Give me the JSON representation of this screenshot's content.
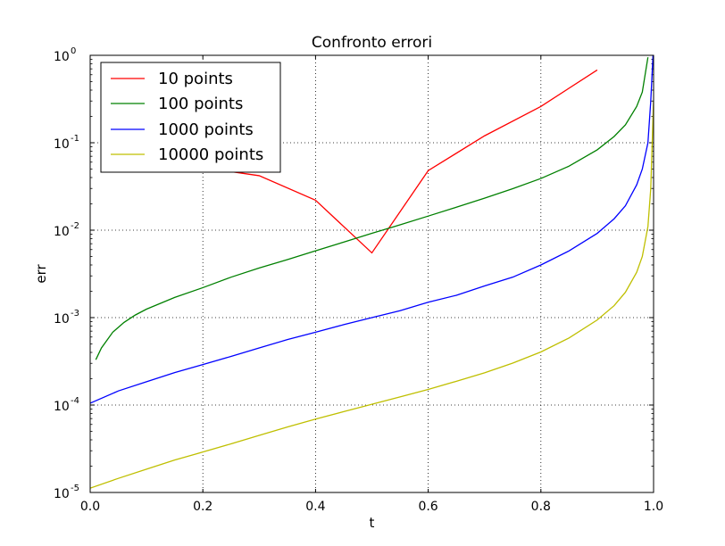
{
  "chart_data": {
    "type": "line",
    "title": "Confronto errori",
    "xlabel": "t",
    "ylabel": "err",
    "xlim": [
      0.0,
      1.0
    ],
    "ylim": [
      1e-05,
      1.0
    ],
    "yscale": "log",
    "grid": true,
    "legend_placement": "top-left",
    "x_ticks": [
      "0.0",
      "0.2",
      "0.4",
      "0.6",
      "0.8",
      "1.0"
    ],
    "y_ticks": [
      {
        "base": "10",
        "exp": "-5"
      },
      {
        "base": "10",
        "exp": "-4"
      },
      {
        "base": "10",
        "exp": "-3"
      },
      {
        "base": "10",
        "exp": "-2"
      },
      {
        "base": "10",
        "exp": "-1"
      },
      {
        "base": "10",
        "exp": "0"
      }
    ],
    "series": [
      {
        "name": "10 points",
        "color": "#ff0000",
        "points": [
          [
            0.1,
            0.065
          ],
          [
            0.2,
            0.052
          ],
          [
            0.3,
            0.042
          ],
          [
            0.4,
            0.022
          ],
          [
            0.5,
            0.0055
          ],
          [
            0.6,
            0.048
          ],
          [
            0.7,
            0.12
          ],
          [
            0.8,
            0.26
          ],
          [
            0.9,
            0.68
          ]
        ]
      },
      {
        "name": "100 points",
        "color": "#008000",
        "points": [
          [
            0.01,
            0.00033
          ],
          [
            0.02,
            0.00045
          ],
          [
            0.04,
            0.00068
          ],
          [
            0.06,
            0.00088
          ],
          [
            0.08,
            0.00107
          ],
          [
            0.1,
            0.00125
          ],
          [
            0.15,
            0.0017
          ],
          [
            0.2,
            0.0022
          ],
          [
            0.25,
            0.0029
          ],
          [
            0.3,
            0.0037
          ],
          [
            0.35,
            0.0046
          ],
          [
            0.4,
            0.0058
          ],
          [
            0.45,
            0.0073
          ],
          [
            0.5,
            0.0092
          ],
          [
            0.55,
            0.0115
          ],
          [
            0.6,
            0.0145
          ],
          [
            0.65,
            0.0183
          ],
          [
            0.7,
            0.0232
          ],
          [
            0.75,
            0.0298
          ],
          [
            0.8,
            0.039
          ],
          [
            0.85,
            0.054
          ],
          [
            0.9,
            0.083
          ],
          [
            0.93,
            0.118
          ],
          [
            0.95,
            0.16
          ],
          [
            0.97,
            0.26
          ],
          [
            0.98,
            0.38
          ],
          [
            0.99,
            0.95
          ]
        ]
      },
      {
        "name": "1000 points",
        "color": "#0000ff",
        "points": [
          [
            0.0,
            0.000105
          ],
          [
            0.05,
            0.000145
          ],
          [
            0.1,
            0.000185
          ],
          [
            0.15,
            0.000235
          ],
          [
            0.2,
            0.00029
          ],
          [
            0.25,
            0.00036
          ],
          [
            0.3,
            0.00045
          ],
          [
            0.35,
            0.00056
          ],
          [
            0.4,
            0.00068
          ],
          [
            0.45,
            0.00083
          ],
          [
            0.5,
            0.001
          ],
          [
            0.55,
            0.0012
          ],
          [
            0.6,
            0.0015
          ],
          [
            0.65,
            0.0018
          ],
          [
            0.7,
            0.0023
          ],
          [
            0.75,
            0.0029
          ],
          [
            0.8,
            0.004
          ],
          [
            0.85,
            0.0058
          ],
          [
            0.9,
            0.0092
          ],
          [
            0.93,
            0.0135
          ],
          [
            0.95,
            0.019
          ],
          [
            0.97,
            0.033
          ],
          [
            0.98,
            0.05
          ],
          [
            0.99,
            0.1
          ],
          [
            0.995,
            0.3
          ],
          [
            0.999,
            1.0
          ]
        ]
      },
      {
        "name": "10000 points",
        "color": "#bfbf00",
        "points": [
          [
            0.0,
            1.12e-05
          ],
          [
            0.05,
            1.45e-05
          ],
          [
            0.1,
            1.85e-05
          ],
          [
            0.15,
            2.35e-05
          ],
          [
            0.2,
            2.9e-05
          ],
          [
            0.25,
            3.6e-05
          ],
          [
            0.3,
            4.5e-05
          ],
          [
            0.35,
            5.6e-05
          ],
          [
            0.4,
            6.9e-05
          ],
          [
            0.45,
            8.4e-05
          ],
          [
            0.5,
            0.000102
          ],
          [
            0.55,
            0.000124
          ],
          [
            0.6,
            0.000151
          ],
          [
            0.65,
            0.000187
          ],
          [
            0.7,
            0.000234
          ],
          [
            0.75,
            0.000302
          ],
          [
            0.8,
            0.000405
          ],
          [
            0.85,
            0.000585
          ],
          [
            0.9,
            0.00094
          ],
          [
            0.93,
            0.00137
          ],
          [
            0.95,
            0.00195
          ],
          [
            0.97,
            0.0033
          ],
          [
            0.98,
            0.005
          ],
          [
            0.99,
            0.011
          ],
          [
            0.995,
            0.03
          ],
          [
            0.9999,
            0.3
          ]
        ]
      }
    ]
  }
}
